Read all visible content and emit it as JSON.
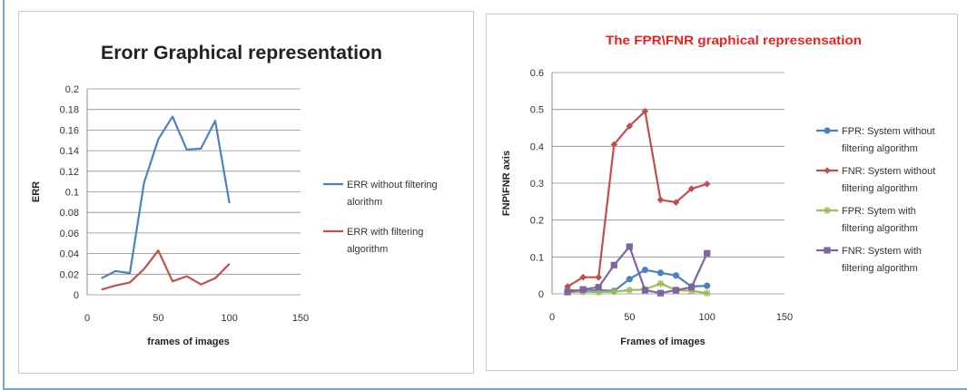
{
  "chart_data": [
    {
      "type": "line",
      "title": "Erorr Graphical representation",
      "xlabel": "frames of images",
      "ylabel": "ERR",
      "xlim": [
        0,
        150
      ],
      "ylim": [
        0,
        0.2
      ],
      "x_ticks": [
        "0",
        "50",
        "100",
        "150"
      ],
      "y_ticks": [
        "0",
        "0.02",
        "0.04",
        "0.06",
        "0.08",
        "0.1",
        "0.12",
        "0.14",
        "0.16",
        "0.18",
        "0.2"
      ],
      "grid": true,
      "legend_position": "right",
      "series": [
        {
          "name": "ERR without filtering alorithm",
          "color": "#4f81bd",
          "marker": "none",
          "x": [
            10,
            20,
            30,
            40,
            50,
            60,
            70,
            80,
            90,
            100
          ],
          "y": [
            0.016,
            0.023,
            0.021,
            0.109,
            0.151,
            0.173,
            0.141,
            0.142,
            0.169,
            0.089
          ]
        },
        {
          "name": "ERR with filtering algorithm",
          "color": "#c0504d",
          "marker": "none",
          "x": [
            10,
            20,
            30,
            40,
            50,
            60,
            70,
            80,
            90,
            100
          ],
          "y": [
            0.005,
            0.009,
            0.012,
            0.025,
            0.043,
            0.013,
            0.018,
            0.01,
            0.016,
            0.03
          ]
        }
      ]
    },
    {
      "type": "line",
      "title": "The FPR\\FNR graphical represensation",
      "title_color": "#e0251f",
      "xlabel": "Frames of images",
      "ylabel": "FNP\\FNR axis",
      "xlim": [
        0,
        150
      ],
      "ylim": [
        0,
        0.6
      ],
      "x_ticks": [
        "0",
        "50",
        "100",
        "150"
      ],
      "y_ticks": [
        "0",
        "0.1",
        "0.2",
        "0.3",
        "0.4",
        "0.5",
        "0.6"
      ],
      "grid": true,
      "legend_position": "right",
      "series": [
        {
          "name": "FPR: System without filtering algorithm",
          "color": "#4f81bd",
          "marker": "circle",
          "x": [
            10,
            20,
            30,
            40,
            50,
            60,
            70,
            80,
            90,
            100
          ],
          "y": [
            0.01,
            0.008,
            0.01,
            0.008,
            0.04,
            0.065,
            0.057,
            0.05,
            0.02,
            0.022
          ]
        },
        {
          "name": "FNR: System without filtering algorithm",
          "color": "#c0504d",
          "marker": "diamond",
          "x": [
            10,
            20,
            30,
            40,
            50,
            60,
            70,
            80,
            90,
            100
          ],
          "y": [
            0.02,
            0.045,
            0.045,
            0.405,
            0.455,
            0.495,
            0.255,
            0.248,
            0.285,
            0.298
          ]
        },
        {
          "name": "FPR: Sytem with filtering algorithm",
          "color": "#9bbb59",
          "marker": "star",
          "x": [
            10,
            20,
            30,
            40,
            50,
            60,
            70,
            80,
            90,
            100
          ],
          "y": [
            0.005,
            0.006,
            0.005,
            0.006,
            0.01,
            0.012,
            0.028,
            0.01,
            0.008,
            0.002
          ]
        },
        {
          "name": "FNR: System with filtering algorithm",
          "color": "#8064a2",
          "marker": "square",
          "x": [
            10,
            20,
            30,
            40,
            50,
            60,
            70,
            80,
            90,
            100
          ],
          "y": [
            0.005,
            0.012,
            0.018,
            0.078,
            0.128,
            0.01,
            0.002,
            0.01,
            0.018,
            0.11
          ]
        }
      ]
    }
  ]
}
